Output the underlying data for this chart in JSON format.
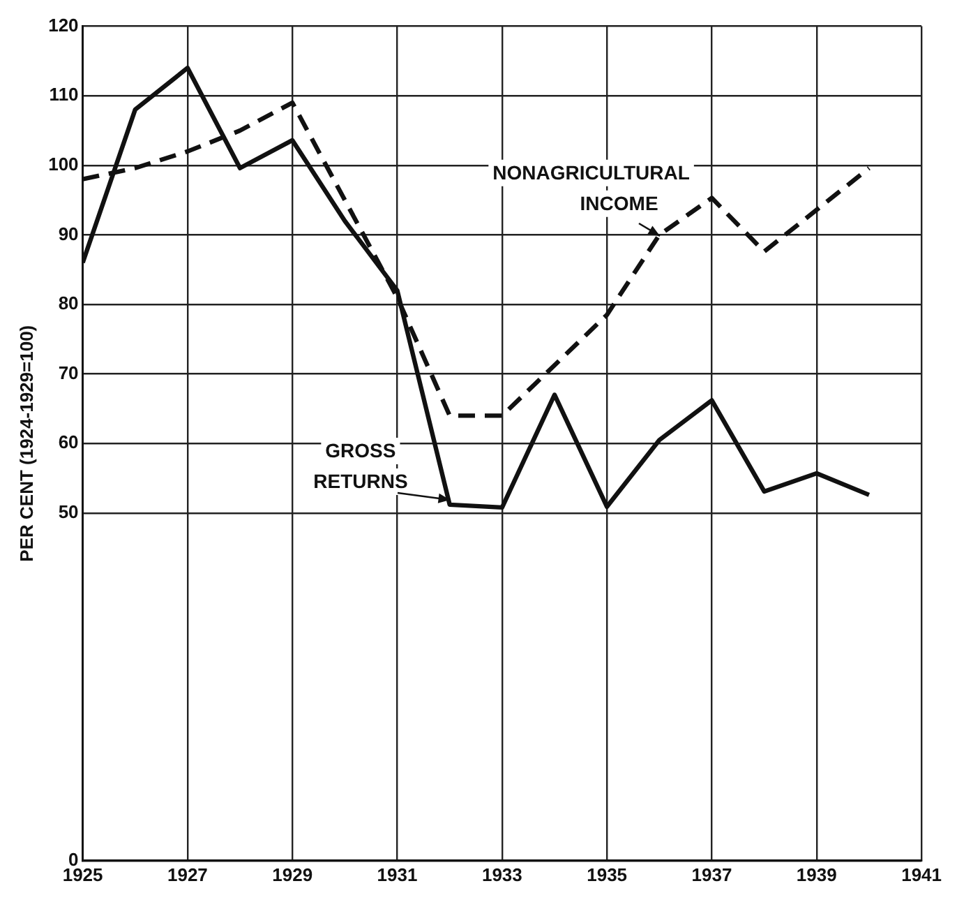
{
  "chart_data": {
    "type": "line",
    "ylabel": "PER CENT (1924-1929=100)",
    "xlim": [
      1925,
      1941
    ],
    "xticks": [
      1925,
      1927,
      1929,
      1931,
      1933,
      1935,
      1937,
      1939,
      1941
    ],
    "ylim": [
      0,
      120
    ],
    "yticks": [
      0,
      50,
      60,
      70,
      80,
      90,
      100,
      110,
      120
    ],
    "grid": true,
    "legend": false,
    "marker": "none",
    "series": [
      {
        "name": "NONAGRICULTURAL INCOME",
        "color": "#111111",
        "line_style": "dashed",
        "x": [
          1925,
          1926,
          1927,
          1928,
          1929,
          1931,
          1932,
          1933,
          1935,
          1936,
          1937,
          1938,
          1940
        ],
        "values": [
          98,
          99.6,
          102,
          105,
          109,
          81,
          64,
          64,
          78.5,
          90,
          95.3,
          87.6,
          99.6
        ]
      },
      {
        "name": "GROSS RETURNS",
        "color": "#111111",
        "line_style": "solid",
        "x": [
          1925,
          1926,
          1927,
          1928,
          1929,
          1930,
          1931,
          1932,
          1933,
          1934,
          1935,
          1936,
          1937,
          1938,
          1939,
          1940
        ],
        "values": [
          86,
          108,
          114,
          99.6,
          103.6,
          92,
          82,
          51.2,
          50.8,
          67,
          50.9,
          60.5,
          66.2,
          53.1,
          55.7,
          52.6
        ]
      }
    ]
  }
}
